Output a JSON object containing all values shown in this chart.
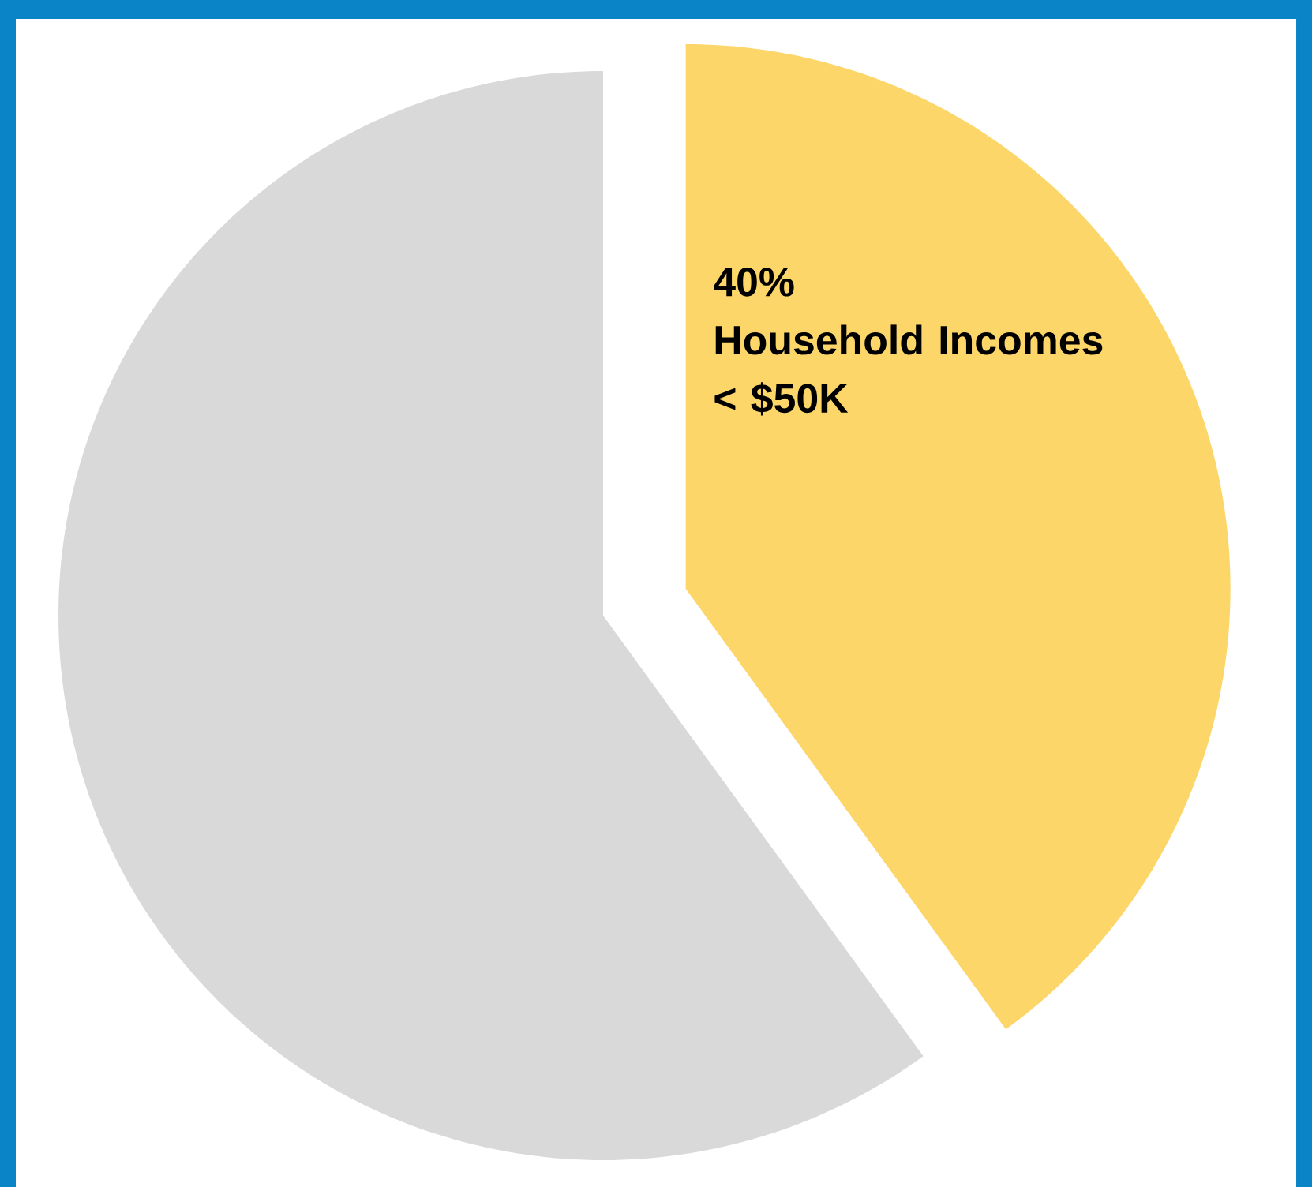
{
  "chart_data": {
    "type": "pie",
    "categories": [
      "Household Incomes < $50K",
      null
    ],
    "values": [
      40,
      60
    ],
    "value_labels": [
      "40%",
      null
    ],
    "colors": [
      "#fcd669",
      "#d9d9d9"
    ]
  }
}
